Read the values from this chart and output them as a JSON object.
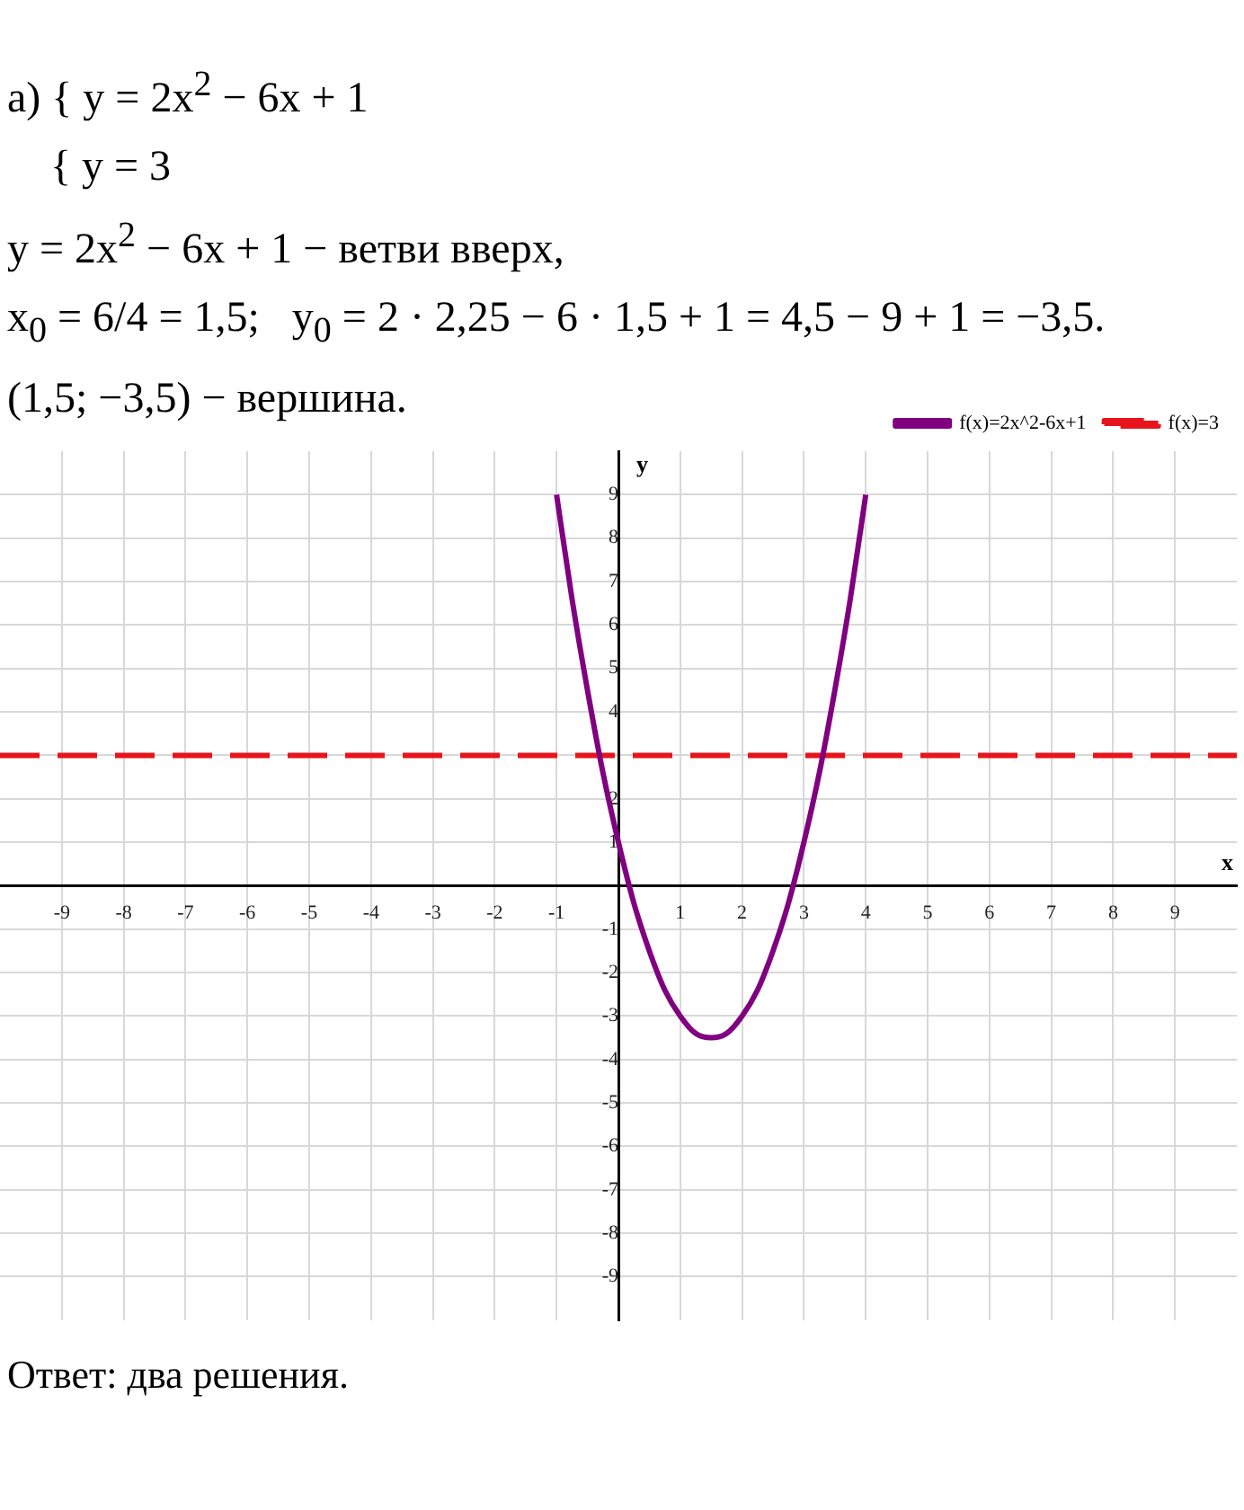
{
  "chart_data": {
    "type": "line",
    "xlabel": "x",
    "ylabel": "y",
    "annotations": [
      "а) { y = 2x$^{2}$ − 6x + 1",
      "    { y = 3",
      "y = 2x$^{2}$ − 6x + 1 − ветви вверх,",
      "x$_{0}$ = 6/4 = 1,5;   y$_{0}$ = 2 · 2,25 − 6 · 1,5 + 1 = 4,5 − 9 + 1 = −3,5.",
      "(1,5; −3,5) − вершина.",
      "Ответ: два решения."
    ],
    "series": [
      {
        "name": "f(x)=2x^2-6x+1",
        "color": "#800080",
        "line_style": "solid",
        "x": [
          -1,
          -0.75,
          -0.5,
          -0.25,
          0,
          0.25,
          0.5,
          0.75,
          1,
          1.25,
          1.5,
          1.75,
          2,
          2.25,
          2.5,
          2.75,
          3,
          3.25,
          3.5,
          3.75,
          4
        ],
        "values": [
          9,
          6.6,
          4.5,
          2.6,
          1,
          -0.4,
          -1.5,
          -2.4,
          -3,
          -3.4,
          -3.5,
          -3.4,
          -3,
          -2.4,
          -1.5,
          -0.4,
          1,
          2.6,
          4.5,
          6.6,
          9
        ]
      },
      {
        "name": "f(x)=3",
        "color": "#e8141b",
        "line_style": "dashed",
        "x": [
          -10,
          10
        ],
        "values": [
          3,
          3
        ]
      }
    ],
    "xlim": [
      -10,
      10
    ],
    "ylim": [
      -10,
      10
    ],
    "xticks": [
      -9,
      -8,
      -7,
      -6,
      -5,
      -4,
      -3,
      -2,
      -1,
      1,
      2,
      3,
      4,
      5,
      6,
      7,
      8,
      9
    ],
    "yticks": [
      -9,
      -8,
      -7,
      -6,
      -5,
      -4,
      -3,
      -2,
      -1,
      1,
      2,
      {
        "value": 3,
        "label": null
      },
      4,
      5,
      6,
      7,
      8,
      9
    ],
    "grid": true,
    "legend": "top right",
    "marker": "none"
  }
}
